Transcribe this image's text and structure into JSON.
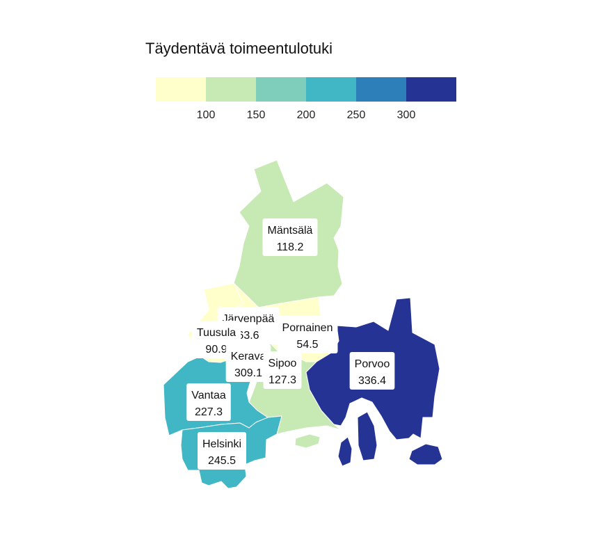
{
  "legend": {
    "title": "Täydentävä toimeentulotuki",
    "ticks": [
      "100",
      "150",
      "200",
      "250",
      "300"
    ],
    "colors": [
      "#ffffcc",
      "#c7e9b4",
      "#7fcdbb",
      "#41b6c4",
      "#2c7fb8",
      "#253494"
    ]
  },
  "municipalities": [
    {
      "id": "mantsala",
      "name": "Mäntsälä",
      "value": "118.2",
      "fill": "#c7e9b4"
    },
    {
      "id": "jarvenpaa",
      "name": "Järvenpää",
      "value": "63.6",
      "fill": "#ffffcc"
    },
    {
      "id": "pornainen",
      "name": "Pornainen",
      "value": "54.5",
      "fill": "#ffffcc"
    },
    {
      "id": "tuusula",
      "name": "Tuusula",
      "value": "90.9",
      "fill": "#ffffcc"
    },
    {
      "id": "kerava",
      "name": "Kerava",
      "value": "309.1",
      "fill": "#253494"
    },
    {
      "id": "sipoo",
      "name": "Sipoo",
      "value": "127.3",
      "fill": "#c7e9b4"
    },
    {
      "id": "porvoo",
      "name": "Porvoo",
      "value": "336.4",
      "fill": "#253494"
    },
    {
      "id": "vantaa",
      "name": "Vantaa",
      "value": "227.3",
      "fill": "#41b6c4"
    },
    {
      "id": "helsinki",
      "name": "Helsinki",
      "value": "245.5",
      "fill": "#41b6c4"
    }
  ]
}
